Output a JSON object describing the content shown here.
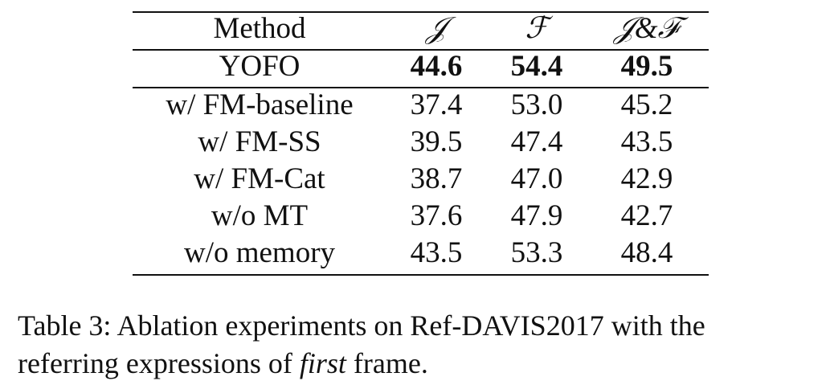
{
  "table": {
    "headers": [
      "Method",
      "𝒥",
      "ℱ",
      "𝒥&ℱ"
    ],
    "rows": [
      [
        "YOFO",
        "44.6",
        "54.4",
        "49.5"
      ],
      [
        "w/ FM-baseline",
        "37.4",
        "53.0",
        "45.2"
      ],
      [
        "w/ FM-SS",
        "39.5",
        "47.4",
        "43.5"
      ],
      [
        "w/ FM-Cat",
        "38.7",
        "47.0",
        "42.9"
      ],
      [
        "w/o MT",
        "37.6",
        "47.9",
        "42.7"
      ],
      [
        "w/o memory",
        "43.5",
        "53.3",
        "48.4"
      ]
    ]
  },
  "caption": {
    "line1": "Table 3: Ablation experiments on Ref-DAVIS2017 with the",
    "line2": [
      "referring expressions of ",
      "first",
      " frame."
    ]
  }
}
